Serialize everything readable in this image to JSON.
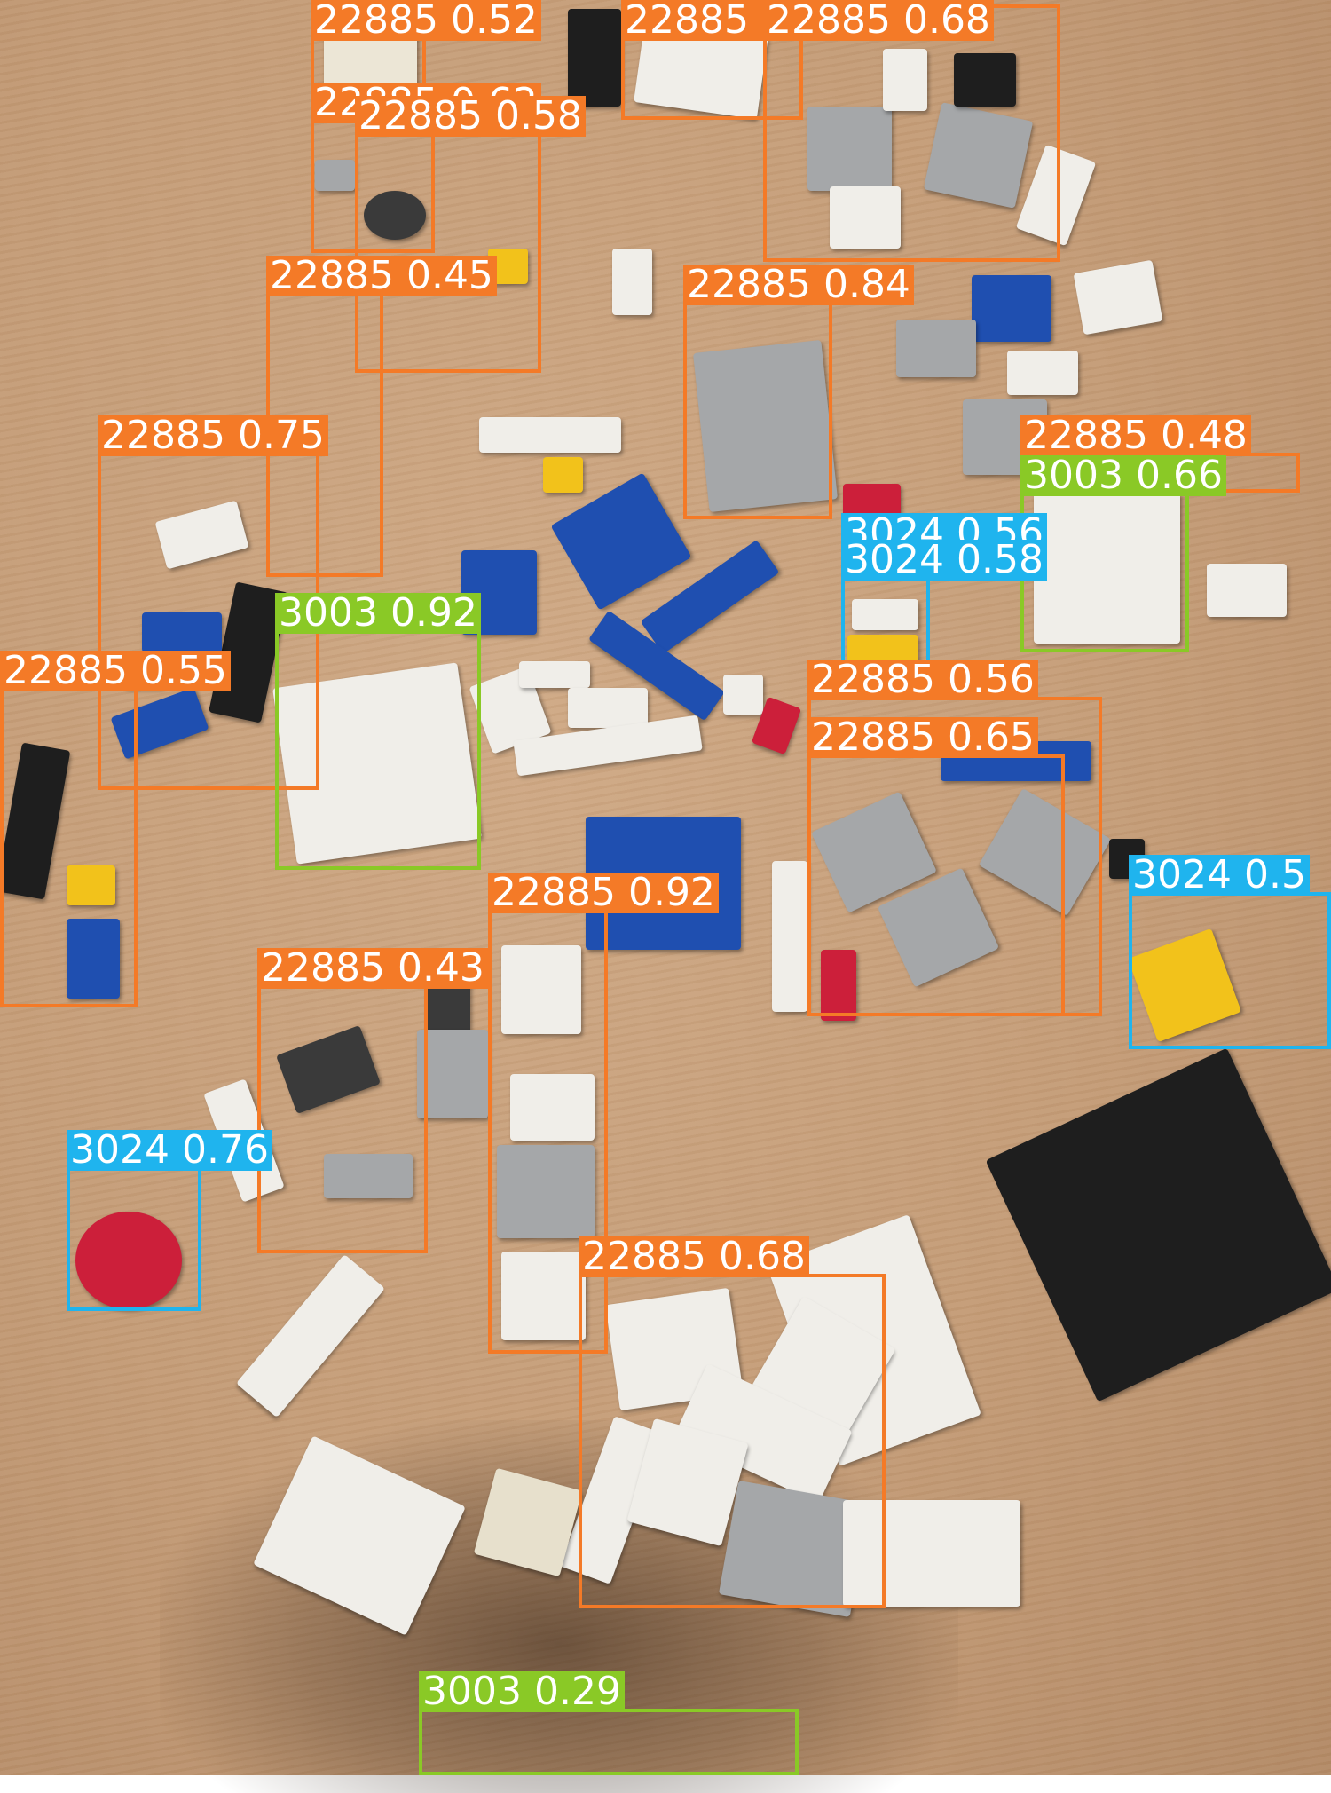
{
  "colors": {
    "orange": "#f47a27",
    "green": "#8ac926",
    "cyan": "#1fb4ee",
    "white_brick": "#f0eee9",
    "gray_brick": "#a5a7a9",
    "blue_brick": "#1f4fb0",
    "black_brick": "#1e1e1e",
    "yellow_brick": "#f2c21b",
    "red_brick": "#cc1f3a"
  },
  "detections": [
    {
      "label": "22885 0.52",
      "color": "orange"
    },
    {
      "label": "22885 0.69",
      "color": "orange"
    },
    {
      "label": "22885 0.68",
      "color": "orange"
    },
    {
      "label": "22885 0.62",
      "color": "orange"
    },
    {
      "label": "22885 0.58",
      "color": "orange"
    },
    {
      "label": "22885 0.45",
      "color": "orange"
    },
    {
      "label": "22885 0.84",
      "color": "orange"
    },
    {
      "label": "22885 0.75",
      "color": "orange"
    },
    {
      "label": "22885 0.48",
      "color": "orange"
    },
    {
      "label": "3003 0.66",
      "color": "green"
    },
    {
      "label": "3024 0.56",
      "color": "cyan"
    },
    {
      "label": "3024 0.58",
      "color": "cyan"
    },
    {
      "label": "3003 0.92",
      "color": "green"
    },
    {
      "label": "22885 0.55",
      "color": "orange"
    },
    {
      "label": "22885 0.56",
      "color": "orange"
    },
    {
      "label": "22885 0.65",
      "color": "orange"
    },
    {
      "label": "3024 0.5",
      "color": "cyan"
    },
    {
      "label": "22885 0.92",
      "color": "orange"
    },
    {
      "label": "22885 0.43",
      "color": "orange"
    },
    {
      "label": "3024 0.76",
      "color": "cyan"
    },
    {
      "label": "22885 0.68",
      "color": "orange"
    },
    {
      "label": "3003 0.29",
      "color": "green"
    }
  ]
}
